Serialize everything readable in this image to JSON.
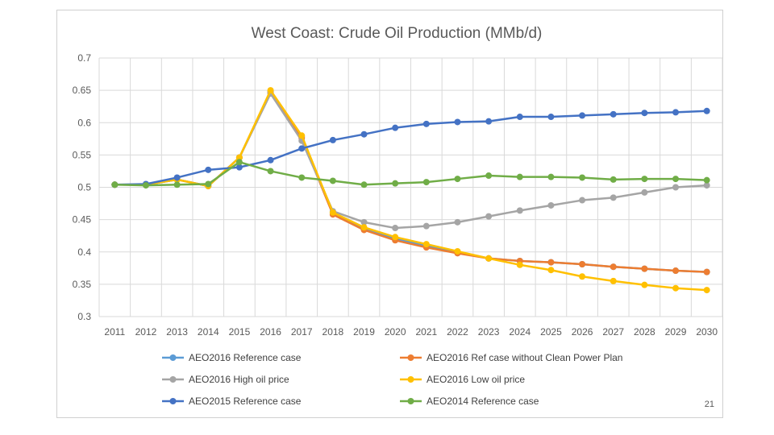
{
  "page_number": "21",
  "chart_data": {
    "type": "line",
    "title": "West Coast: Crude Oil Production (MMb/d)",
    "xlabel": "",
    "ylabel": "",
    "ylim": [
      0.3,
      0.7
    ],
    "yticks": [
      "0.3",
      "0.35",
      "0.4",
      "0.45",
      "0.5",
      "0.55",
      "0.6",
      "0.65",
      "0.7"
    ],
    "grid": true,
    "legend_position": "bottom",
    "categories": [
      "2011",
      "2012",
      "2013",
      "2014",
      "2015",
      "2016",
      "2017",
      "2018",
      "2019",
      "2020",
      "2021",
      "2022",
      "2023",
      "2024",
      "2025",
      "2026",
      "2027",
      "2028",
      "2029",
      "2030"
    ],
    "series": [
      {
        "name": "AEO2016 Reference case",
        "color": "#5B9BD5",
        "values": [
          0.504,
          0.504,
          0.512,
          0.502,
          0.546,
          0.648,
          0.578,
          0.46,
          0.436,
          0.42,
          0.41,
          0.4,
          0.39,
          0.386,
          0.384,
          0.381,
          0.377,
          0.374,
          0.371,
          0.369
        ]
      },
      {
        "name": "AEO2016 Ref case without Clean Power Plan",
        "color": "#ED7D31",
        "values": [
          0.504,
          0.504,
          0.512,
          0.502,
          0.546,
          0.646,
          0.576,
          0.458,
          0.434,
          0.418,
          0.407,
          0.398,
          0.39,
          0.386,
          0.384,
          0.381,
          0.377,
          0.374,
          0.371,
          0.369
        ]
      },
      {
        "name": "AEO2016 High oil price",
        "color": "#A5A5A5",
        "values": [
          0.504,
          0.504,
          0.512,
          0.502,
          0.546,
          0.645,
          0.572,
          0.463,
          0.446,
          0.437,
          0.44,
          0.446,
          0.455,
          0.464,
          0.472,
          0.48,
          0.484,
          0.492,
          0.5,
          0.503
        ]
      },
      {
        "name": "AEO2016 Low oil price",
        "color": "#FFC000",
        "values": [
          0.504,
          0.504,
          0.512,
          0.502,
          0.546,
          0.65,
          0.58,
          0.461,
          0.438,
          0.423,
          0.412,
          0.401,
          0.39,
          0.38,
          0.372,
          0.362,
          0.355,
          0.349,
          0.344,
          0.341
        ]
      },
      {
        "name": "AEO2015 Reference case",
        "color": "#4472C4",
        "values": [
          0.504,
          0.505,
          0.515,
          0.527,
          0.531,
          0.542,
          0.56,
          0.573,
          0.582,
          0.592,
          0.598,
          0.601,
          0.602,
          0.609,
          0.609,
          0.611,
          0.613,
          0.615,
          0.616,
          0.618
        ]
      },
      {
        "name": "AEO2014 Reference case",
        "color": "#70AD47",
        "values": [
          0.504,
          0.503,
          0.504,
          0.505,
          0.539,
          0.525,
          0.515,
          0.51,
          0.504,
          0.506,
          0.508,
          0.513,
          0.518,
          0.516,
          0.516,
          0.515,
          0.512,
          0.513,
          0.513,
          0.511
        ]
      }
    ]
  }
}
